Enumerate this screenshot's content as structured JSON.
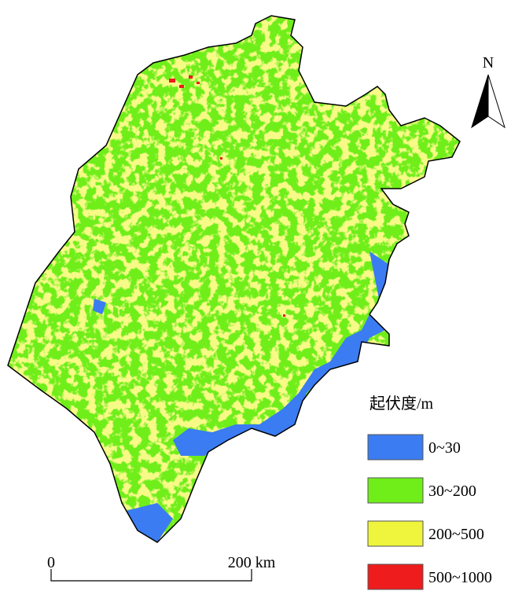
{
  "map": {
    "north_label": "N",
    "legend": {
      "title": "起伏度/m",
      "items": [
        {
          "label": "0~30",
          "color": "#3b7cf2"
        },
        {
          "label": "30~200",
          "color": "#6fee1a"
        },
        {
          "label": "200~500",
          "color": "#eef53c"
        },
        {
          "label": "500~1000",
          "color": "#ee1c1c"
        }
      ]
    },
    "scale_bar": {
      "start_label": "0",
      "end_label": "200 km"
    }
  }
}
